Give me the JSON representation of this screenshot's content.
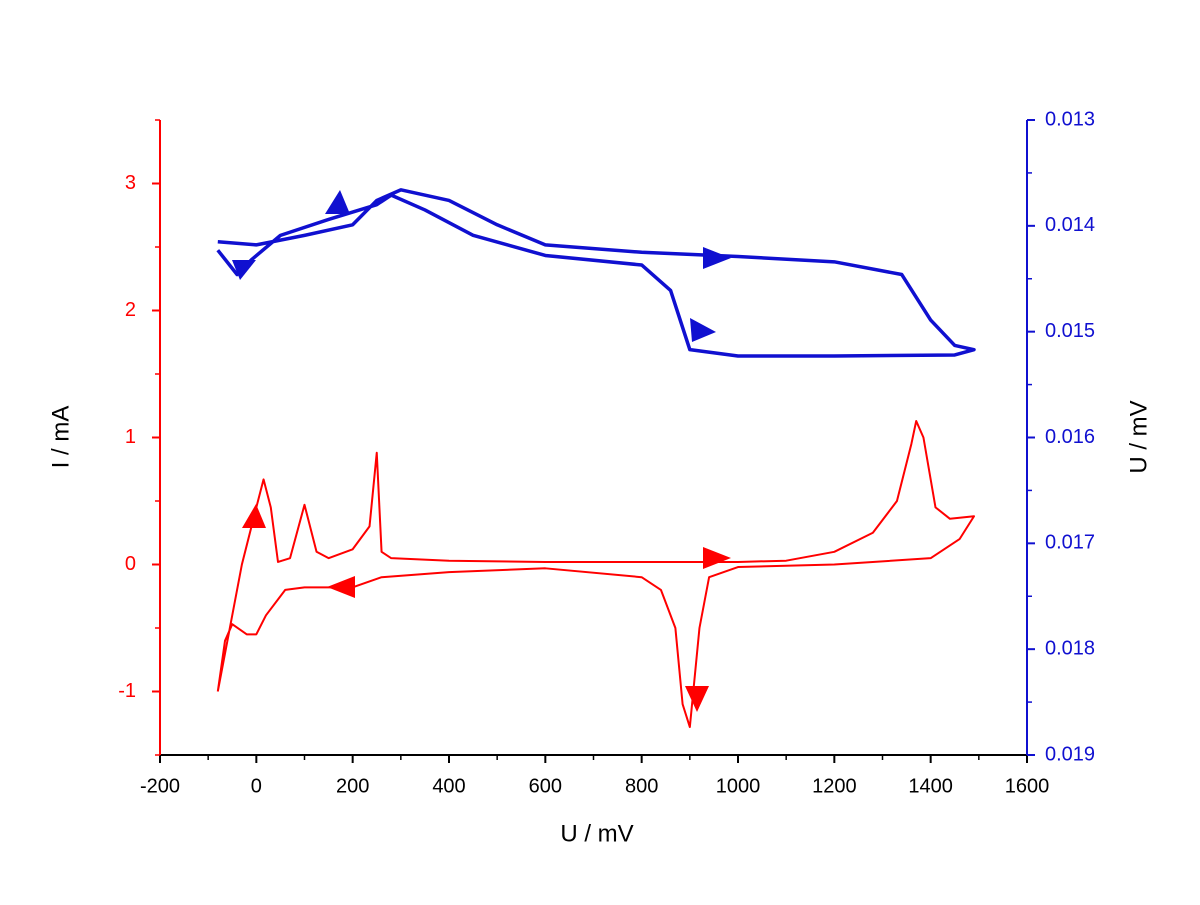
{
  "chart_data": {
    "type": "line",
    "xlabel": "U / mV",
    "ylabel": "I / mA",
    "y2label": "U / mV",
    "xlim": [
      -200,
      1600
    ],
    "xticks": [
      -200,
      0,
      200,
      400,
      600,
      800,
      1000,
      1200,
      1400,
      1600
    ],
    "xminorticks": [
      -100,
      100,
      300,
      500,
      700,
      900,
      1100,
      1300,
      1500
    ],
    "ylim": [
      -1.5,
      3.5
    ],
    "yticks": [
      -1,
      0,
      1,
      2,
      3
    ],
    "yminorticks": [
      -1.5,
      -0.5,
      0.5,
      1.5,
      2.5,
      3.5
    ],
    "y2lim": [
      0.019,
      0.013
    ],
    "y2ticks": [
      0.013,
      0.014,
      0.015,
      0.016,
      0.017,
      0.018,
      0.019
    ],
    "y2minorticks": [
      0.0135,
      0.0145,
      0.0155,
      0.0165,
      0.0175,
      0.0185
    ],
    "ycolor": "#ff0000",
    "y2color": "#1010d0",
    "series": [
      {
        "color": "#ff0000",
        "x": [
          -80,
          -60,
          -30,
          0,
          15,
          30,
          45,
          70,
          100,
          125,
          150,
          200,
          235,
          250,
          260,
          280,
          400,
          600,
          800,
          1000,
          1100,
          1200,
          1280,
          1330,
          1360,
          1370,
          1385,
          1410,
          1440,
          1490,
          1460,
          1400,
          1200,
          1000,
          940,
          920,
          900,
          885,
          870,
          840,
          800,
          600,
          400,
          260,
          200,
          100,
          60,
          20,
          0,
          -20,
          -50,
          -65,
          -80
        ],
        "values": [
          -1.0,
          -0.6,
          0.0,
          0.45,
          0.67,
          0.45,
          0.02,
          0.05,
          0.47,
          0.1,
          0.05,
          0.12,
          0.3,
          0.88,
          0.1,
          0.05,
          0.03,
          0.02,
          0.02,
          0.02,
          0.03,
          0.1,
          0.25,
          0.5,
          0.95,
          1.13,
          1.0,
          0.45,
          0.36,
          0.38,
          0.2,
          0.05,
          0.0,
          -0.02,
          -0.1,
          -0.5,
          -1.28,
          -1.1,
          -0.5,
          -0.2,
          -0.1,
          -0.03,
          -0.06,
          -0.1,
          -0.18,
          -0.18,
          -0.2,
          -0.4,
          -0.55,
          -0.55,
          -0.47,
          -0.6,
          -1.0
        ]
      },
      {
        "color": "#1010d0",
        "axis": "y2",
        "x": [
          -80,
          0,
          100,
          200,
          250,
          300,
          400,
          500,
          600,
          800,
          1000,
          1200,
          1340,
          1400,
          1450,
          1490,
          1450,
          1200,
          1000,
          900,
          880,
          860,
          800,
          600,
          450,
          350,
          280,
          250,
          150,
          50,
          -10,
          -40,
          -80
        ],
        "values": [
          0.01415,
          0.01418,
          0.01409,
          0.01399,
          0.01376,
          0.01366,
          0.01376,
          0.01399,
          0.01418,
          0.01425,
          0.01429,
          0.01434,
          0.01446,
          0.01489,
          0.01513,
          0.01517,
          0.01522,
          0.01523,
          0.01523,
          0.01517,
          0.01489,
          0.01461,
          0.01437,
          0.01428,
          0.01409,
          0.01385,
          0.01371,
          0.0138,
          0.01394,
          0.01409,
          0.01432,
          0.01446,
          0.01423
        ]
      }
    ]
  }
}
